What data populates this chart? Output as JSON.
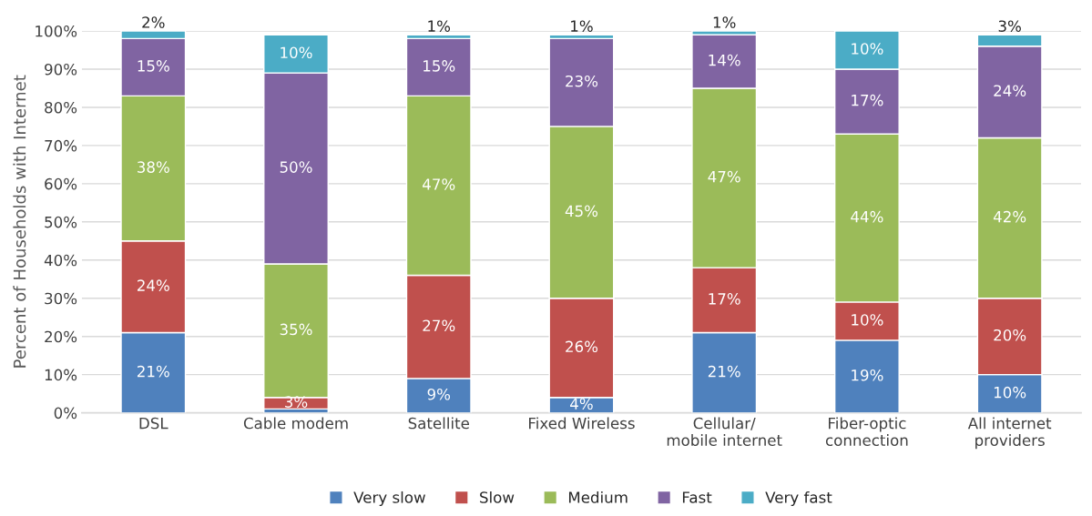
{
  "chart_data": {
    "type": "bar",
    "stacked": true,
    "ylabel": "Percent of Households with Internet",
    "categories": [
      "DSL",
      "Cable modem",
      "Satellite",
      "Fixed Wireless",
      "Cellular/\nmobile internet",
      "Fiber-optic\nconnection",
      "All internet\nproviders"
    ],
    "series": [
      {
        "name": "Very slow",
        "color": "#4f81bd",
        "values": [
          21,
          1,
          9,
          4,
          21,
          19,
          10
        ],
        "value_labels": [
          "21%",
          null,
          "9%",
          "4%",
          "21%",
          "19%",
          "10%"
        ]
      },
      {
        "name": "Slow",
        "color": "#c0504d",
        "values": [
          24,
          3,
          27,
          26,
          17,
          10,
          20
        ],
        "value_labels": [
          "24%",
          "3%",
          "27%",
          "26%",
          "17%",
          "10%",
          "20%"
        ]
      },
      {
        "name": "Medium",
        "color": "#9bbb59",
        "values": [
          38,
          35,
          47,
          45,
          47,
          44,
          42
        ],
        "value_labels": [
          "38%",
          "35%",
          "47%",
          "45%",
          "47%",
          "44%",
          "42%"
        ]
      },
      {
        "name": "Fast",
        "color": "#8064a2",
        "values": [
          15,
          50,
          15,
          23,
          14,
          17,
          24
        ],
        "value_labels": [
          "15%",
          "50%",
          "15%",
          "23%",
          "14%",
          "17%",
          "24%"
        ]
      },
      {
        "name": "Very fast",
        "color": "#4bacc6",
        "values": [
          2,
          10,
          1,
          1,
          1,
          10,
          3
        ],
        "value_labels": [
          "2%",
          "10%",
          "1%",
          "1%",
          "1%",
          "10%",
          "3%"
        ]
      }
    ],
    "ylim": [
      0,
      100
    ],
    "yticks": [
      {
        "value": 0,
        "label": "0%"
      },
      {
        "value": 10,
        "label": "10%"
      },
      {
        "value": 20,
        "label": "20%"
      },
      {
        "value": 30,
        "label": "30%"
      },
      {
        "value": 40,
        "label": "40%"
      },
      {
        "value": 50,
        "label": "50%"
      },
      {
        "value": 60,
        "label": "60%"
      },
      {
        "value": 70,
        "label": "70%"
      },
      {
        "value": 80,
        "label": "80%"
      },
      {
        "value": 90,
        "label": "90%"
      },
      {
        "value": 100,
        "label": "100%"
      }
    ],
    "grid": "y",
    "legend": "bottom"
  }
}
